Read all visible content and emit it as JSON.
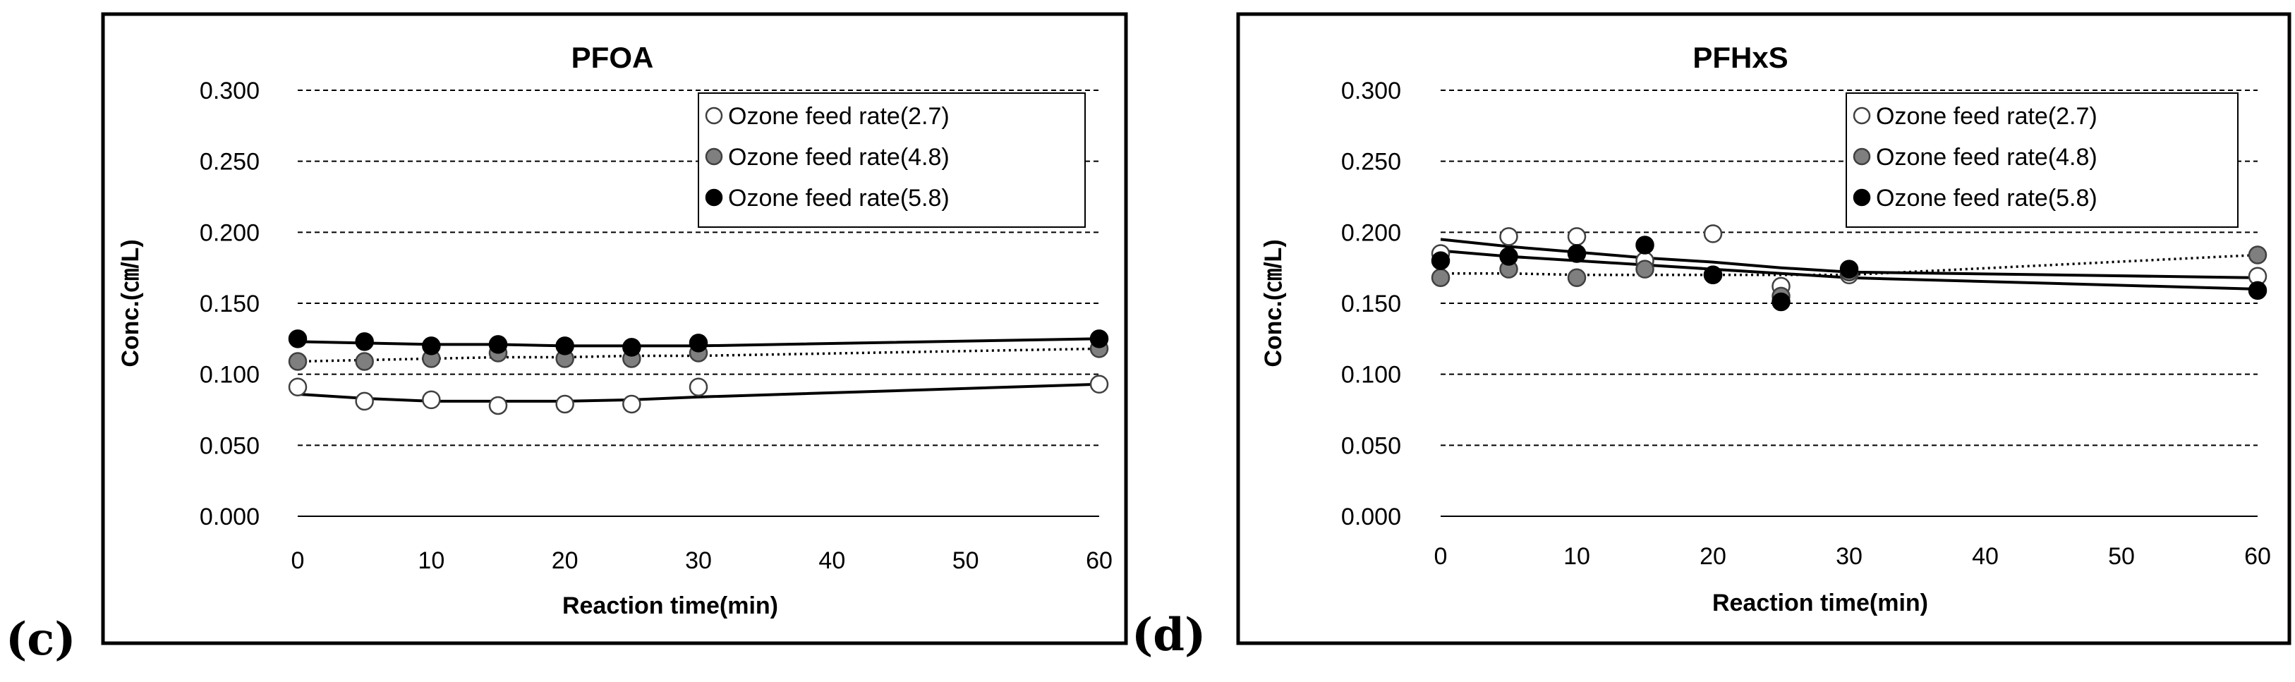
{
  "panel_labels": [
    "(c)",
    "(d)"
  ],
  "chart_data": [
    {
      "type": "scatter",
      "title": "PFOA",
      "xlabel": "Reaction time(min)",
      "ylabel": "Conc.(㎝/L)",
      "xlim": [
        0,
        60
      ],
      "ylim": [
        0,
        0.3
      ],
      "xticks": [
        "0",
        "10",
        "20",
        "30",
        "40",
        "50",
        "60"
      ],
      "yticks": [
        "0.000",
        "0.050",
        "0.100",
        "0.150",
        "0.200",
        "0.250",
        "0.300"
      ],
      "grid": true,
      "legend_position": "top-right",
      "series": [
        {
          "name": "Ozone feed rate(2.7)",
          "marker": "open",
          "x": [
            0,
            5,
            10,
            15,
            20,
            25,
            30,
            60
          ],
          "values": [
            0.091,
            0.081,
            0.082,
            0.078,
            0.079,
            0.079,
            0.091,
            0.093
          ],
          "trend": "solid",
          "trend_values": [
            0.086,
            0.083,
            0.081,
            0.081,
            0.081,
            0.082,
            0.084,
            0.093
          ]
        },
        {
          "name": "Ozone feed rate(4.8)",
          "marker": "gray",
          "x": [
            0,
            5,
            10,
            15,
            20,
            25,
            30,
            60
          ],
          "values": [
            0.109,
            0.109,
            0.111,
            0.115,
            0.111,
            0.111,
            0.115,
            0.118
          ],
          "trend": "dotted",
          "trend_values": [
            0.109,
            0.11,
            0.111,
            0.112,
            0.112,
            0.113,
            0.113,
            0.118
          ]
        },
        {
          "name": "Ozone feed rate(5.8)",
          "marker": "black",
          "x": [
            0,
            5,
            10,
            15,
            20,
            25,
            30,
            60
          ],
          "values": [
            0.125,
            0.123,
            0.12,
            0.121,
            0.12,
            0.119,
            0.122,
            0.125
          ],
          "trend": "solid",
          "trend_values": [
            0.123,
            0.122,
            0.121,
            0.121,
            0.12,
            0.12,
            0.12,
            0.125
          ]
        }
      ]
    },
    {
      "type": "scatter",
      "title": "PFHxS",
      "xlabel": "Reaction time(min)",
      "ylabel": "Conc.(㎝/L)",
      "xlim": [
        0,
        60
      ],
      "ylim": [
        0,
        0.3
      ],
      "xticks": [
        "0",
        "10",
        "20",
        "30",
        "40",
        "50",
        "60"
      ],
      "yticks": [
        "0.000",
        "0.050",
        "0.100",
        "0.150",
        "0.200",
        "0.250",
        "0.300"
      ],
      "grid": true,
      "legend_position": "top-right",
      "series": [
        {
          "name": "Ozone feed rate(2.7)",
          "marker": "open",
          "x": [
            0,
            5,
            10,
            15,
            20,
            25,
            30,
            60
          ],
          "values": [
            0.185,
            0.197,
            0.197,
            0.18,
            0.199,
            0.162,
            0.17,
            0.169
          ],
          "trend": "solid",
          "trend_values": [
            0.195,
            0.19,
            0.186,
            0.182,
            0.179,
            0.175,
            0.172,
            0.168
          ]
        },
        {
          "name": "Ozone feed rate(4.8)",
          "marker": "gray",
          "x": [
            0,
            5,
            10,
            15,
            20,
            25,
            30,
            60
          ],
          "values": [
            0.168,
            0.174,
            0.168,
            0.174,
            0.17,
            0.155,
            0.172,
            0.184
          ],
          "trend": "dotted",
          "trend_values": [
            0.171,
            0.171,
            0.17,
            0.17,
            0.17,
            0.17,
            0.17,
            0.184
          ]
        },
        {
          "name": "Ozone feed rate(5.8)",
          "marker": "black",
          "x": [
            0,
            5,
            10,
            15,
            20,
            25,
            30,
            60
          ],
          "values": [
            0.18,
            0.183,
            0.185,
            0.191,
            0.17,
            0.151,
            0.174,
            0.159
          ],
          "trend": "solid",
          "trend_values": [
            0.187,
            0.183,
            0.18,
            0.177,
            0.174,
            0.171,
            0.168,
            0.16
          ]
        }
      ]
    }
  ],
  "colors": {
    "open_fill": "#ffffff",
    "gray_fill": "#7f7f7f",
    "black_fill": "#000000",
    "marker_stroke": "#404040",
    "grid": "#000000",
    "frame": "#000000"
  }
}
